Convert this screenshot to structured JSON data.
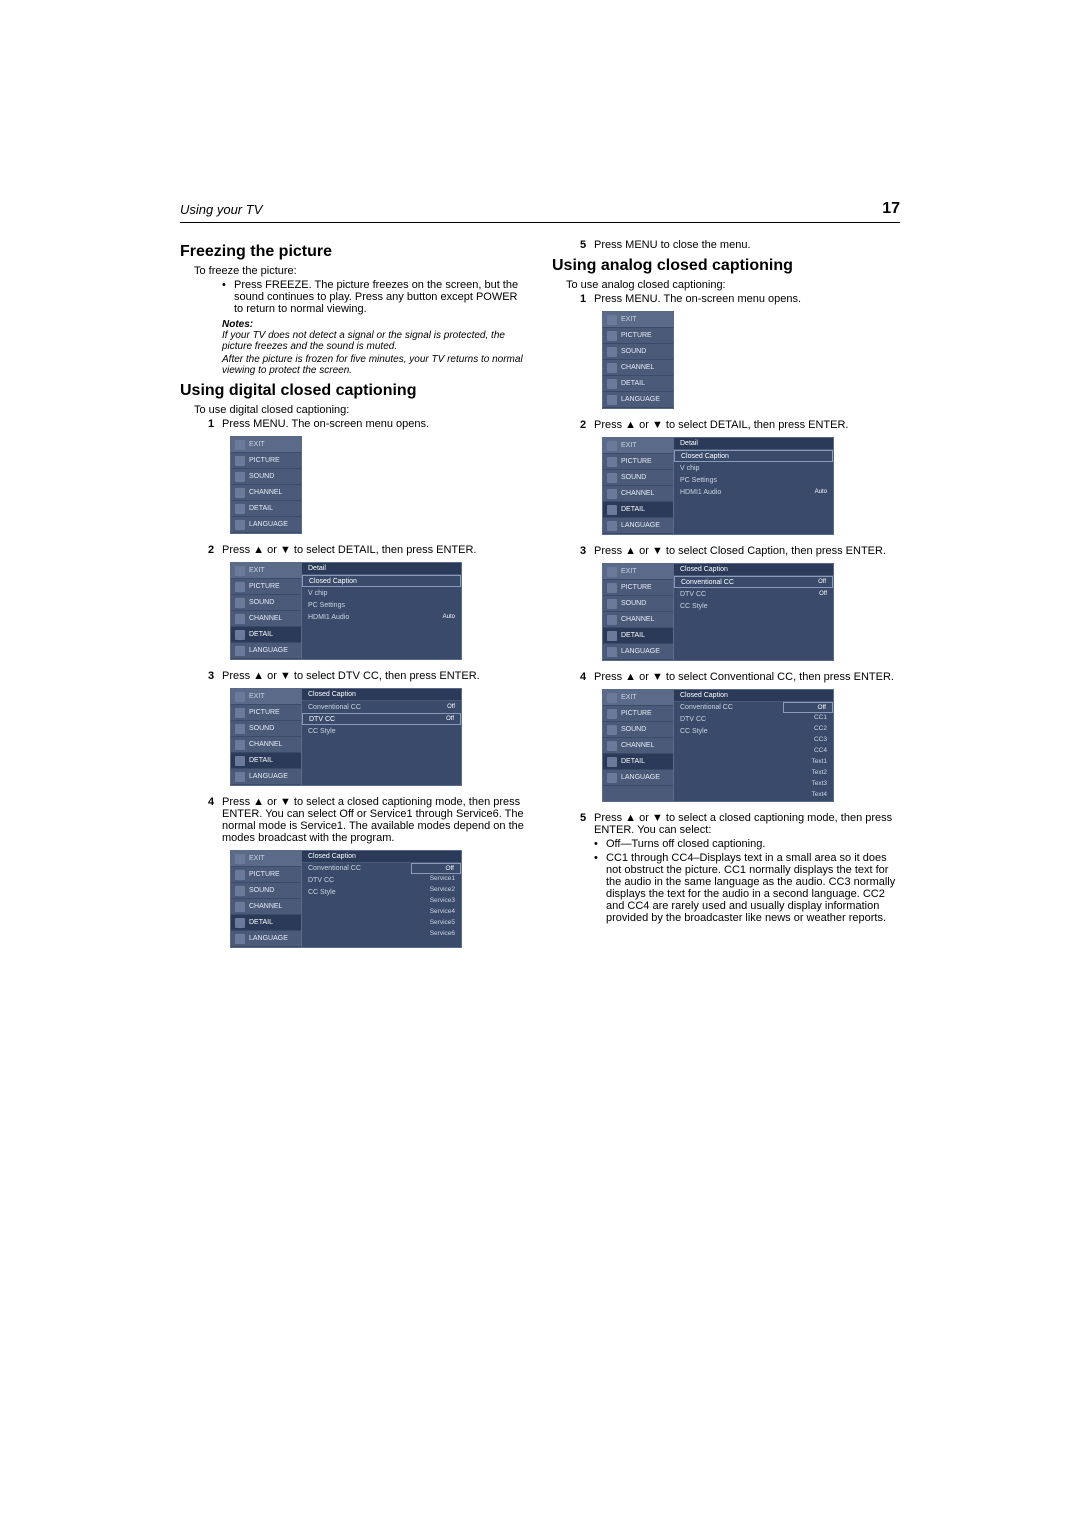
{
  "header": {
    "left": "Using your TV",
    "pageNum": "17"
  },
  "leftCol": {
    "h1": "Freezing the picture",
    "sub1": "To freeze the picture:",
    "bullet1": "Press FREEZE. The picture freezes on the screen, but the sound continues to play. Press any button except POWER to return to normal viewing.",
    "notesHead": "Notes:",
    "note1": "If your TV does not detect a signal or the signal is protected, the picture freezes and the sound is muted.",
    "note2": "After the picture is frozen for five minutes, your TV returns to normal viewing to protect the screen.",
    "h2": "Using digital closed captioning",
    "sub2": "To use digital closed captioning:",
    "step1": "Press MENU. The on-screen menu opens.",
    "step2": "Press ▲ or ▼ to select DETAIL, then press ENTER.",
    "step3": "Press ▲ or ▼ to select DTV CC, then press ENTER.",
    "step4": "Press ▲ or ▼ to select a closed captioning mode, then press ENTER. You can select Off or Service1 through Service6. The normal mode is Service1. The available modes depend on the modes broadcast with the program."
  },
  "rightCol": {
    "step5top": "Press MENU to close the menu.",
    "h1": "Using analog closed captioning",
    "sub1": "To use analog closed captioning:",
    "step1": "Press MENU. The on-screen menu opens.",
    "step2": "Press ▲ or ▼ to select DETAIL, then press ENTER.",
    "step3": "Press ▲ or ▼ to select Closed Caption, then press ENTER.",
    "step4": "Press ▲ or ▼ to select Conventional CC, then press ENTER.",
    "step5": "Press ▲ or ▼ to select a closed captioning mode, then press ENTER. You can select:",
    "b1": "Off—Turns off closed captioning.",
    "b2": "CC1 through CC4–Displays text in a small area so it does not obstruct the picture. CC1 normally displays the text for the audio in the same language as the audio. CC3 normally displays the text for the audio in a second language. CC2 and CC4 are rarely used and usually display information provided by the broadcaster like news or weather reports."
  },
  "menu": {
    "items": [
      "EXIT",
      "PICTURE",
      "SOUND",
      "CHANNEL",
      "DETAIL",
      "LANGUAGE"
    ],
    "detailPanel": {
      "title": "Detail",
      "rows": [
        {
          "l": "Closed Caption",
          "v": "",
          "sel": true
        },
        {
          "l": "V chip",
          "v": ""
        },
        {
          "l": "PC Settings",
          "v": ""
        },
        {
          "l": "HDMI1 Audio",
          "v": "Auto"
        }
      ]
    },
    "ccPanel": {
      "title": "Closed Caption",
      "rows": [
        {
          "l": "Conventional CC",
          "v": "Off"
        },
        {
          "l": "DTV CC",
          "v": "Off",
          "sel": true
        },
        {
          "l": "CC Style",
          "v": ""
        }
      ]
    },
    "ccPanelConv": {
      "title": "Closed Caption",
      "rows": [
        {
          "l": "Conventional CC",
          "v": "Off",
          "sel": true
        },
        {
          "l": "DTV CC",
          "v": "Off"
        },
        {
          "l": "CC Style",
          "v": ""
        }
      ]
    },
    "dtvOptions": [
      "Off",
      "Service1",
      "Service2",
      "Service3",
      "Service4",
      "Service5",
      "Service6"
    ],
    "convOptions": [
      "Off",
      "CC1",
      "CC2",
      "CC3",
      "CC4",
      "Text1",
      "Text2",
      "Text3",
      "Text4"
    ]
  },
  "colors": {
    "menuBg": "#4a5a78",
    "menuSel": "#2a3a58",
    "panelBg": "#394a6a"
  }
}
